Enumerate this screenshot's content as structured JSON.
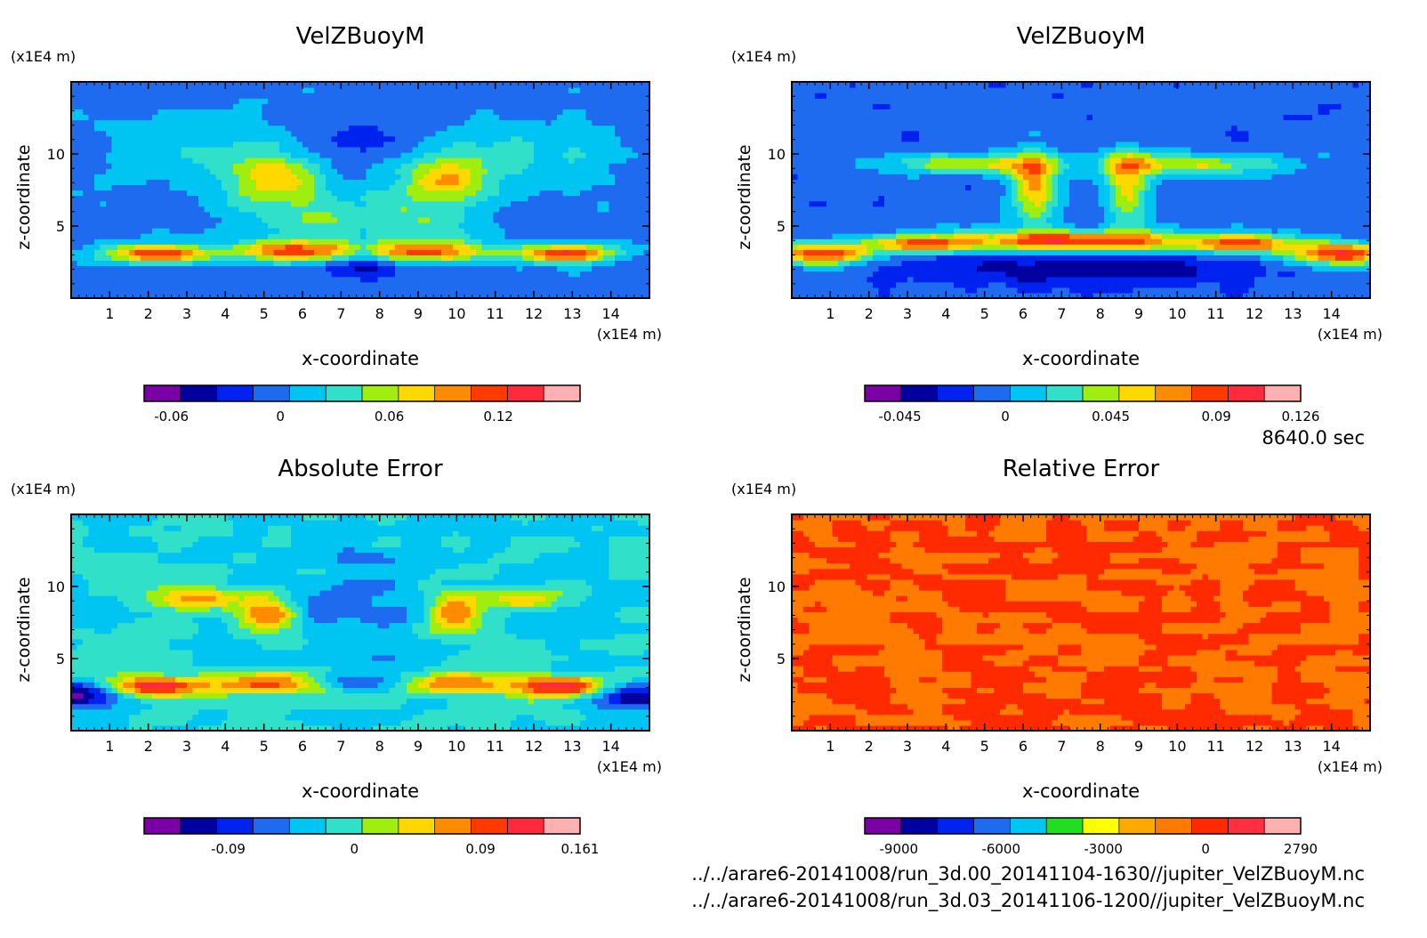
{
  "figure": {
    "time_label": "8640.0 sec",
    "files": [
      "../../arare6-20141008/run_3d.00_20141104-1630//jupiter_VelZBuoyM.nc",
      "../../arare6-20141008/run_3d.03_20141106-1200//jupiter_VelZBuoyM.nc"
    ]
  },
  "colors": {
    "rainbow": [
      "#7a00a6",
      "#00009e",
      "#0022ee",
      "#1f6bf0",
      "#00c4f2",
      "#30e0c8",
      "#a0ee10",
      "#ffd800",
      "#ff8c00",
      "#ff3a00",
      "#ff2a3c",
      "#ffb0b0"
    ],
    "rel_error": [
      "#7a00a6",
      "#00009e",
      "#0022ee",
      "#1f6bf0",
      "#00c4f2",
      "#22dd22",
      "#ffff00",
      "#ffaa00",
      "#ff7a00",
      "#ff2a00",
      "#ff3040",
      "#ffb0b0"
    ]
  },
  "chart_data": [
    {
      "type": "heatmap",
      "title": "VelZBuoyM",
      "xlabel": "x-coordinate",
      "ylabel": "z-coordinate",
      "x_unit": "(x1E4 m)",
      "y_unit": "(x1E4 m)",
      "x_ticks": [
        "1",
        "2",
        "3",
        "4",
        "5",
        "6",
        "7",
        "8",
        "9",
        "10",
        "11",
        "12",
        "13",
        "14"
      ],
      "y_ticks": [
        "5",
        "10"
      ],
      "xlim": [
        0,
        15
      ],
      "ylim": [
        0,
        15
      ],
      "colorbar": {
        "palette": "rainbow",
        "ticks": [
          "-0.06",
          "0",
          "0.06",
          "0.12"
        ],
        "tick_values": [
          -0.06,
          0,
          0.06,
          0.12
        ],
        "range": [
          -0.075,
          0.165
        ]
      }
    },
    {
      "type": "heatmap",
      "title": "VelZBuoyM",
      "xlabel": "x-coordinate",
      "ylabel": "z-coordinate",
      "x_unit": "(x1E4 m)",
      "y_unit": "(x1E4 m)",
      "x_ticks": [
        "1",
        "2",
        "3",
        "4",
        "5",
        "6",
        "7",
        "8",
        "9",
        "10",
        "11",
        "12",
        "13",
        "14"
      ],
      "y_ticks": [
        "5",
        "10"
      ],
      "xlim": [
        0,
        15
      ],
      "ylim": [
        0,
        15
      ],
      "colorbar": {
        "palette": "rainbow",
        "ticks": [
          "-0.045",
          "0",
          "0.045",
          "0.09",
          "0.126"
        ],
        "tick_values": [
          -0.045,
          0,
          0.045,
          0.09,
          0.126
        ],
        "range": [
          -0.06,
          0.126
        ]
      }
    },
    {
      "type": "heatmap",
      "title": "Absolute Error",
      "xlabel": "x-coordinate",
      "ylabel": "z-coordinate",
      "x_unit": "(x1E4 m)",
      "y_unit": "(x1E4 m)",
      "x_ticks": [
        "1",
        "2",
        "3",
        "4",
        "5",
        "6",
        "7",
        "8",
        "9",
        "10",
        "11",
        "12",
        "13",
        "14"
      ],
      "y_ticks": [
        "5",
        "10"
      ],
      "xlim": [
        0,
        15
      ],
      "ylim": [
        0,
        15
      ],
      "colorbar": {
        "palette": "rainbow",
        "ticks": [
          "-0.09",
          "0",
          "0.09",
          "0.161"
        ],
        "tick_values": [
          -0.09,
          0,
          0.09,
          0.161
        ],
        "range": [
          -0.15,
          0.161
        ]
      }
    },
    {
      "type": "heatmap",
      "title": "Relative Error",
      "xlabel": "x-coordinate",
      "ylabel": "z-coordinate",
      "x_unit": "(x1E4 m)",
      "y_unit": "(x1E4 m)",
      "x_ticks": [
        "1",
        "2",
        "3",
        "4",
        "5",
        "6",
        "7",
        "8",
        "9",
        "10",
        "11",
        "12",
        "13",
        "14"
      ],
      "y_ticks": [
        "5",
        "10"
      ],
      "xlim": [
        0,
        15
      ],
      "ylim": [
        0,
        15
      ],
      "colorbar": {
        "palette": "rel_error",
        "ticks": [
          "-9000",
          "-6000",
          "-3000",
          "0",
          "2790"
        ],
        "tick_values": [
          -9000,
          -6000,
          -3000,
          0,
          2790
        ],
        "range": [
          -10000,
          2790
        ]
      }
    }
  ]
}
